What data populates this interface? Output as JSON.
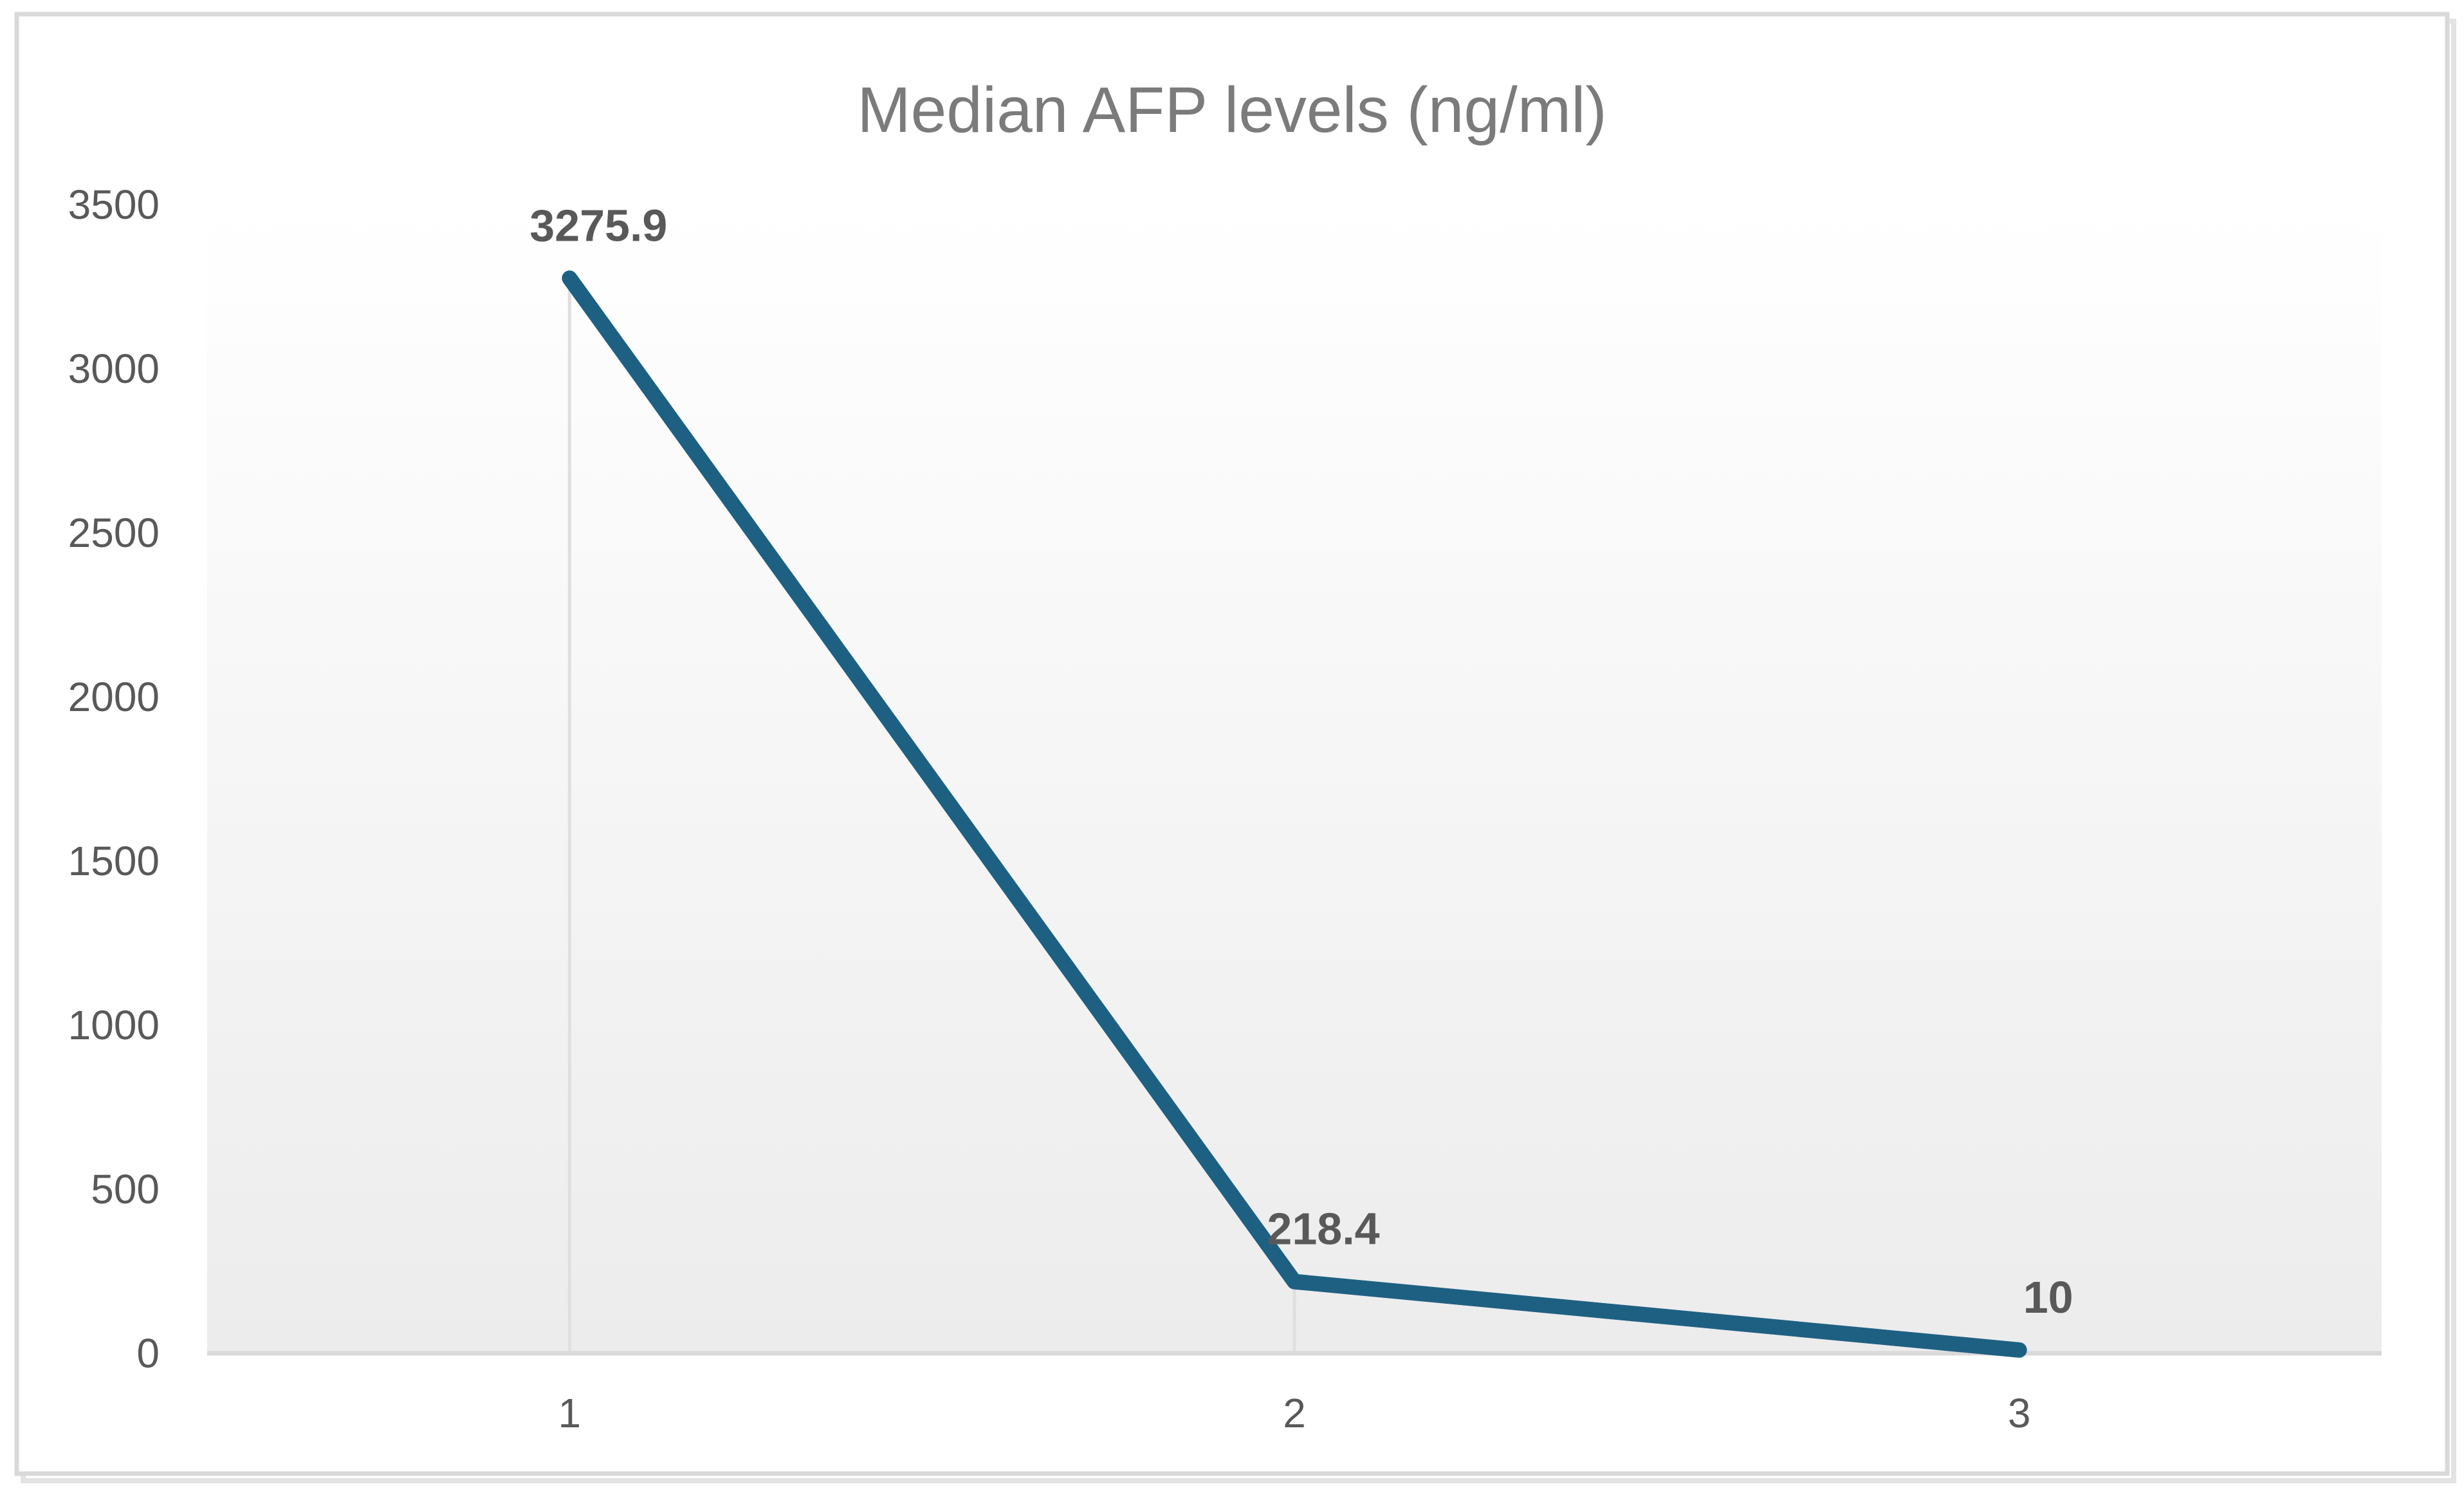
{
  "chart_data": {
    "type": "line",
    "title": "Median AFP levels (ng/ml)",
    "categories": [
      "1",
      "2",
      "3"
    ],
    "series": [
      {
        "name": "Median AFP levels (ng/ml)",
        "values": [
          3275.9,
          218.4,
          10
        ]
      }
    ],
    "data_labels": [
      "3275.9",
      "218.4",
      "10"
    ],
    "xlabel": "",
    "ylabel": "",
    "ylim": [
      0,
      3500
    ],
    "ytick_step": 500,
    "ytick_labels": [
      "0",
      "500",
      "1000",
      "1500",
      "2000",
      "2500",
      "3000",
      "3500"
    ],
    "grid": "drop-lines-only",
    "legend": "none",
    "colors": {
      "line": "#1e6082",
      "title": "#7b7b7b",
      "axis_labels": "#595959",
      "data_labels": "#595959",
      "axis_line": "#d9d9d9",
      "drop_line": "#dfdfdf",
      "plot_bg_top": "#ffffff",
      "plot_bg_bottom": "#ececec",
      "chart_border": "#d9d9d9",
      "chart_shadow": "#e3e3e3"
    }
  }
}
